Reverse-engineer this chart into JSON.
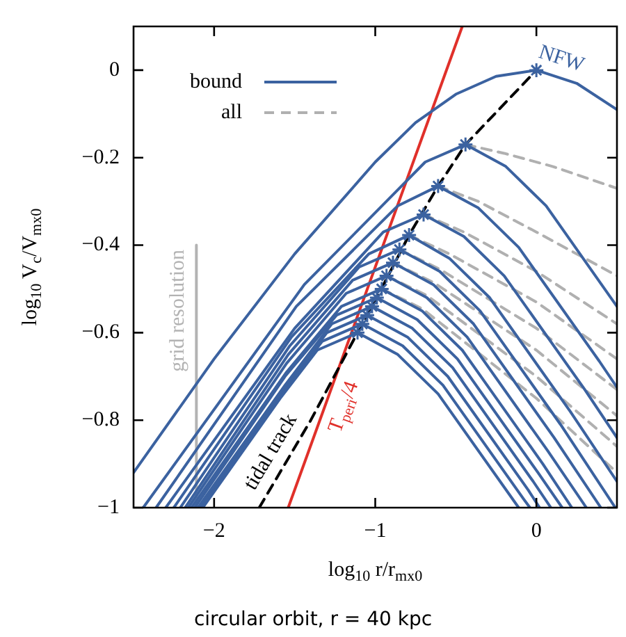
{
  "chart_data": {
    "type": "line",
    "xlabel": "log$_{10}$ r/r$_{mx0}$",
    "ylabel": "log$_{10}$ V$_{c}$/V$_{mx0}$",
    "xlim": [
      -2.5,
      0.5
    ],
    "ylim": [
      -1,
      0.1
    ],
    "xticks": [
      {
        "value": -2,
        "label": "−2"
      },
      {
        "value": -1,
        "label": "−1"
      },
      0
    ],
    "yticks": [
      {
        "value": -1,
        "label": "−1"
      },
      {
        "value": -0.8,
        "label": "−0.8"
      },
      {
        "value": -0.6,
        "label": "−0.6"
      },
      {
        "value": -0.4,
        "label": "−0.4"
      },
      {
        "value": -0.2,
        "label": "−0.2"
      },
      0
    ],
    "grid": false,
    "legend": "top left",
    "annotations": [
      {
        "text": "NFW",
        "x": 0.12,
        "y": -0.014
      },
      {
        "text": "tidal track",
        "x": -1.55,
        "y": -0.894
      },
      {
        "text": "T$_{peri}$/4",
        "x": -1.3,
        "y": -0.756
      },
      {
        "text": "grid resolution",
        "x": -2.11,
        "y": -0.55
      },
      "circular orbit, r = 40 kpc"
    ],
    "series": [
      {
        "color": "#3b62a0",
        "x": [
          -2.5,
          -2,
          -1.5,
          -1,
          -0.75,
          -0.5,
          -0.25,
          0,
          0.25,
          0.5
        ],
        "values": [
          -0.92,
          -0.66,
          -0.42,
          -0.21,
          -0.12,
          -0.055,
          -0.014,
          0,
          -0.03,
          -0.09
        ]
      },
      {
        "name": "bound",
        "color": "#3b62a0",
        "x": [
          -2.44,
          -1.44,
          -0.69,
          -0.44,
          -0.19,
          0.06,
          0.5
        ],
        "values": [
          -1,
          -0.49,
          -0.21,
          -0.17,
          -0.22,
          -0.31,
          -0.54
        ]
      },
      {
        "color": "#3b62a0",
        "x": [
          -2.36,
          -1.49,
          -0.86,
          -0.61,
          -0.36,
          -0.11,
          0.39,
          0.5
        ],
        "values": [
          -1,
          -0.54,
          -0.31,
          -0.265,
          -0.315,
          -0.405,
          -0.665,
          -0.725
        ]
      },
      {
        "color": "#3b62a0",
        "x": [
          -2.3,
          -1.5,
          -0.95,
          -0.7,
          -0.45,
          -0.2,
          0.3,
          0.5
        ],
        "values": [
          -1,
          -0.59,
          -0.37,
          -0.33,
          -0.38,
          -0.47,
          -0.73,
          -0.84
        ]
      },
      {
        "color": "#3b62a0",
        "x": [
          -2.25,
          -1.52,
          -1.04,
          -0.79,
          -0.54,
          -0.29,
          0.21,
          0.5
        ],
        "values": [
          -1,
          -0.61,
          -0.42,
          -0.377,
          -0.43,
          -0.52,
          -0.78,
          -0.94
        ]
      },
      {
        "color": "#3b62a0",
        "x": [
          -2.21,
          -1.53,
          -1.1,
          -0.85,
          -0.6,
          -0.35,
          0.15,
          0.49
        ],
        "values": [
          -1,
          -0.63,
          -0.45,
          -0.41,
          -0.46,
          -0.55,
          -0.81,
          -1
        ]
      },
      {
        "color": "#3b62a0",
        "x": [
          -2.18,
          -1.54,
          -1.14,
          -0.89,
          -0.64,
          -0.39,
          0.11,
          0.4
        ],
        "values": [
          -1,
          -0.65,
          -0.48,
          -0.44,
          -0.49,
          -0.58,
          -0.84,
          -1
        ]
      },
      {
        "color": "#3b62a0",
        "x": [
          -2.16,
          -1.55,
          -1.18,
          -0.93,
          -0.68,
          -0.43,
          0.07,
          0.31
        ],
        "values": [
          -1,
          -0.67,
          -0.51,
          -0.47,
          -0.52,
          -0.61,
          -0.87,
          -1
        ]
      },
      {
        "color": "#3b62a0",
        "x": [
          -2.14,
          -1.55,
          -1.21,
          -0.96,
          -0.71,
          -0.46,
          0.04,
          0.22
        ],
        "values": [
          -1,
          -0.69,
          -0.54,
          -0.5,
          -0.55,
          -0.64,
          -0.9,
          -1
        ]
      },
      {
        "color": "#3b62a0",
        "x": [
          -2.12,
          -1.56,
          -1.24,
          -0.99,
          -0.74,
          -0.49,
          0.01,
          0.16
        ],
        "values": [
          -1,
          -0.7,
          -0.56,
          -0.52,
          -0.57,
          -0.66,
          -0.92,
          -1
        ]
      },
      {
        "color": "#3b62a0",
        "x": [
          -2.1,
          -1.56,
          -1.27,
          -1.02,
          -0.77,
          -0.52,
          -0.02,
          0.09
        ],
        "values": [
          -1,
          -0.72,
          -0.58,
          -0.54,
          -0.59,
          -0.68,
          -0.94,
          -1
        ]
      },
      {
        "color": "#3b62a0",
        "x": [
          -2.09,
          -1.57,
          -1.3,
          -1.05,
          -0.8,
          -0.55,
          -0.05,
          0.02
        ],
        "values": [
          -1,
          -0.73,
          -0.6,
          -0.56,
          -0.61,
          -0.7,
          -0.96,
          -1
        ]
      },
      {
        "color": "#3b62a0",
        "x": [
          -2.08,
          -1.58,
          -1.33,
          -1.08,
          -0.83,
          -0.58,
          -0.08,
          -0.04
        ],
        "values": [
          -1,
          -0.74,
          -0.62,
          -0.58,
          -0.63,
          -0.72,
          -0.98,
          -1
        ]
      },
      {
        "color": "#3b62a0",
        "x": [
          -2.07,
          -1.59,
          -1.36,
          -1.11,
          -0.86,
          -0.61,
          -0.11
        ],
        "values": [
          -1,
          -0.75,
          -0.64,
          -0.6,
          -0.65,
          -0.74,
          -1
        ]
      },
      {
        "name": "all",
        "color": "#b0b0b0",
        "line_style": "dashed",
        "x": [
          -0.44,
          -0.2,
          0.1,
          0.5
        ],
        "values": [
          -0.17,
          -0.19,
          -0.22,
          -0.27
        ]
      },
      {
        "color": "#b0b0b0",
        "line_style": "dashed",
        "x": [
          -0.61,
          -0.36,
          0,
          0.5
        ],
        "values": [
          -0.265,
          -0.3,
          -0.37,
          -0.47
        ]
      },
      {
        "color": "#b0b0b0",
        "line_style": "dashed",
        "x": [
          -0.7,
          -0.45,
          0,
          0.5
        ],
        "values": [
          -0.33,
          -0.37,
          -0.46,
          -0.58
        ]
      },
      {
        "color": "#b0b0b0",
        "line_style": "dashed",
        "x": [
          -0.79,
          -0.54,
          0,
          0.5
        ],
        "values": [
          -0.377,
          -0.42,
          -0.53,
          -0.66
        ]
      },
      {
        "color": "#b0b0b0",
        "line_style": "dashed",
        "x": [
          -0.85,
          -0.6,
          0,
          0.5
        ],
        "values": [
          -0.41,
          -0.455,
          -0.59,
          -0.73
        ]
      },
      {
        "color": "#b0b0b0",
        "line_style": "dashed",
        "x": [
          -0.89,
          -0.64,
          0,
          0.5
        ],
        "values": [
          -0.44,
          -0.485,
          -0.64,
          -0.79
        ]
      },
      {
        "color": "#b0b0b0",
        "line_style": "dashed",
        "x": [
          -0.93,
          -0.68,
          0,
          0.5
        ],
        "values": [
          -0.47,
          -0.515,
          -0.7,
          -0.86
        ]
      },
      {
        "color": "#b0b0b0",
        "line_style": "dashed",
        "x": [
          -0.96,
          -0.71,
          0,
          0.5
        ],
        "values": [
          -0.5,
          -0.545,
          -0.75,
          -0.92
        ]
      },
      {
        "color": "#000000",
        "line_style": "dashed",
        "x": [
          -1.72,
          -1.4,
          -1.11,
          -0.99,
          -0.79,
          -0.61,
          -0.44,
          0
        ],
        "values": [
          -1,
          -0.8,
          -0.6,
          -0.52,
          -0.377,
          -0.265,
          -0.17,
          0
        ]
      },
      {
        "color": "#e0302a",
        "x": [
          -1.54,
          -0.46
        ],
        "values": [
          -1,
          0.1
        ]
      },
      {
        "color": "#b3b3b3",
        "x": [
          -2.11,
          -2.11
        ],
        "values": [
          -0.4,
          -1
        ]
      },
      {
        "type": "scatter",
        "marker": "cross",
        "color": "#3b62a0",
        "x": [
          0,
          -0.44,
          -0.61,
          -0.7,
          -0.79,
          -0.85,
          -0.89,
          -0.93,
          -0.96,
          -0.99,
          -1.02,
          -1.05,
          -1.08,
          -1.11
        ],
        "values": [
          0,
          -0.17,
          -0.265,
          -0.33,
          -0.377,
          -0.41,
          -0.44,
          -0.47,
          -0.5,
          -0.52,
          -0.54,
          -0.56,
          -0.58,
          -0.6
        ]
      }
    ]
  }
}
